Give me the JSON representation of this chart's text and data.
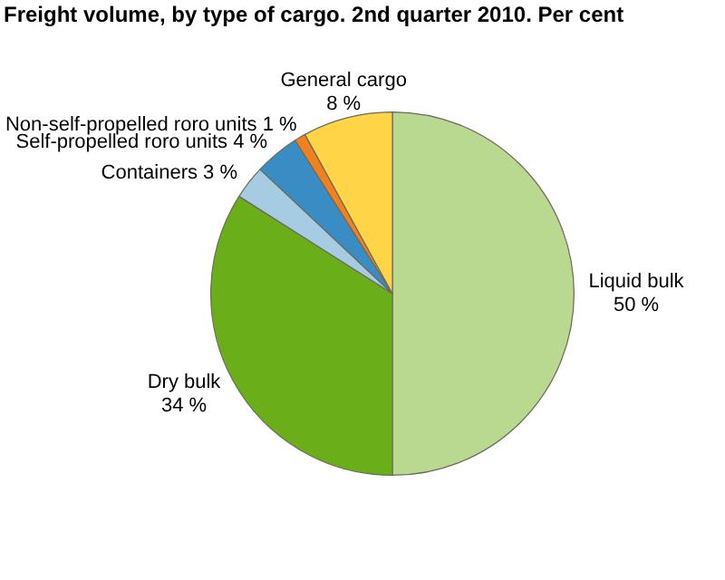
{
  "chart_data": {
    "type": "pie",
    "title": "Freight volume, by type of cargo. 2nd quarter 2010. Per cent",
    "categories": [
      "Liquid bulk",
      "Dry bulk",
      "Containers",
      "Self-propelled roro units",
      "Non-self-propelled roro units",
      "General cargo"
    ],
    "values": [
      50,
      34,
      3,
      4,
      1,
      8
    ],
    "colors": [
      "#b8d98f",
      "#6aaf1a",
      "#a6cce4",
      "#3a8cc4",
      "#f2801e",
      "#ffd547"
    ],
    "value_labels": [
      "50 %",
      "34 %",
      "3 %",
      "4 %",
      "1 %",
      "8 %"
    ],
    "legend": false
  }
}
